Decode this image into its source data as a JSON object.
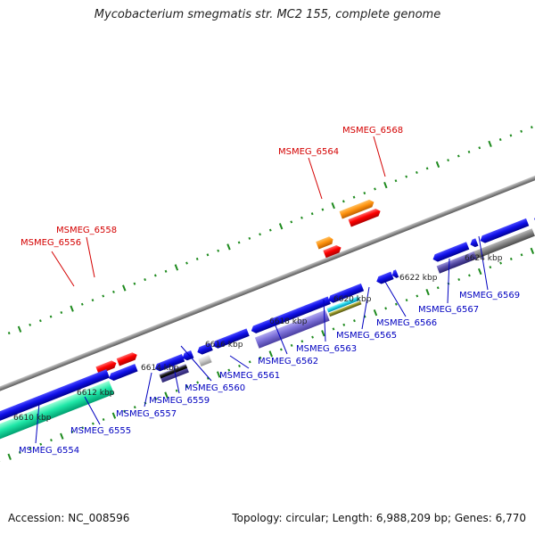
{
  "title": "Mycobacterium smegmatis str. MC2 155, complete genome",
  "footer": {
    "accession": "Accession: NC_008596",
    "topology": "Topology: circular; Length: 6,988,209 bp; Genes: 6,770"
  },
  "colors": {
    "backbone": "#8c8c8c",
    "dots": "#1d8a1d",
    "forward_label": "#d40000",
    "reverse_label": "#0000c0"
  },
  "ruler": [
    {
      "label": "6610 kbp"
    },
    {
      "label": "6612 kbp"
    },
    {
      "label": "6614 kbp"
    },
    {
      "label": "6616 kbp"
    },
    {
      "label": "6618 kbp"
    },
    {
      "label": "6620 kbp"
    },
    {
      "label": "6622 kbp"
    },
    {
      "label": "6624 kbp"
    }
  ],
  "forward_labels": [
    {
      "text": "MSMEG_6556"
    },
    {
      "text": "MSMEG_6558"
    },
    {
      "text": "MSMEG_6564"
    },
    {
      "text": "MSMEG_6568"
    }
  ],
  "reverse_labels": [
    {
      "text": "MSMEG_6554"
    },
    {
      "text": "MSMEG_6555"
    },
    {
      "text": "MSMEG_6557"
    },
    {
      "text": "MSMEG_6559"
    },
    {
      "text": "MSMEG_6560"
    },
    {
      "text": "MSMEG_6561"
    },
    {
      "text": "MSMEG_6562"
    },
    {
      "text": "MSMEG_6563"
    },
    {
      "text": "MSMEG_6565"
    },
    {
      "text": "MSMEG_6566"
    },
    {
      "text": "MSMEG_6567"
    },
    {
      "text": "MSMEG_6569"
    }
  ]
}
